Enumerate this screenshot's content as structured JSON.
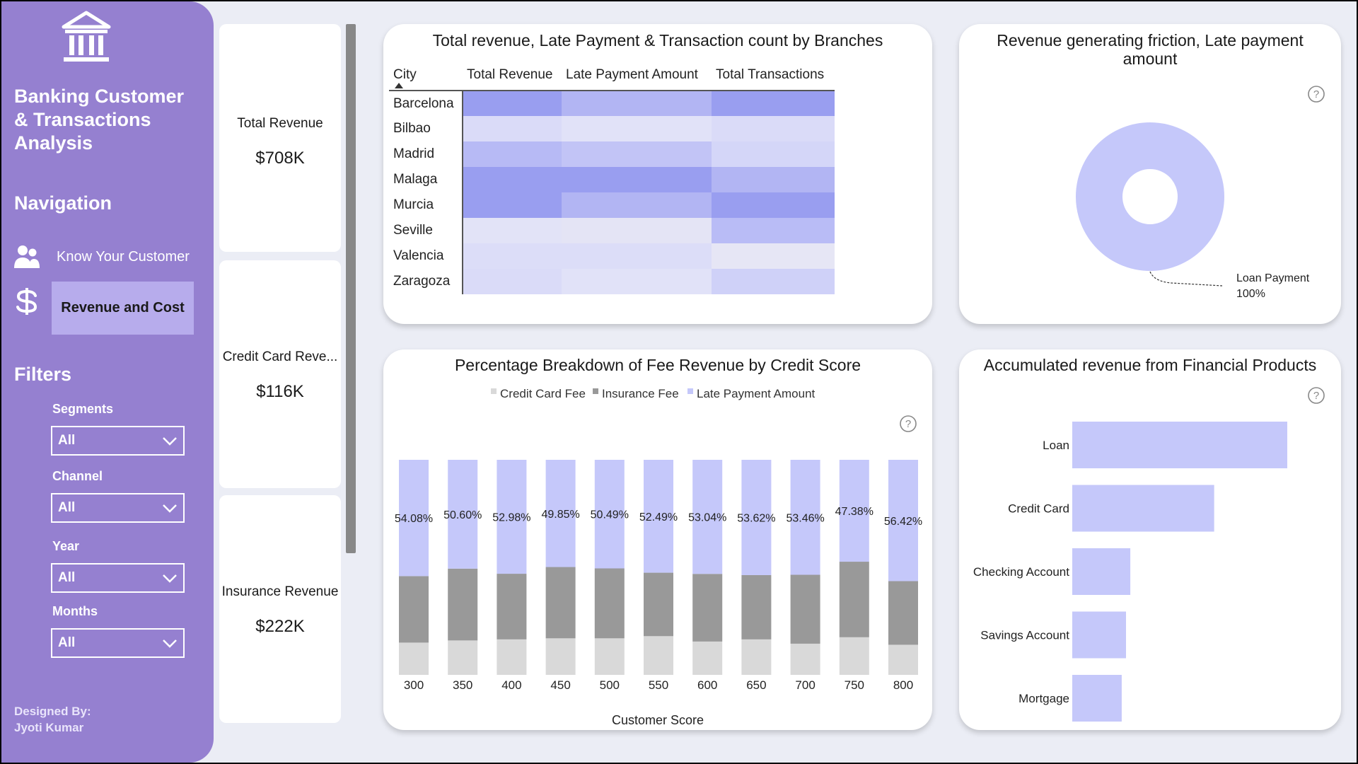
{
  "app": {
    "title": "Banking Customer & Transactions Analysis",
    "navigation_title": "Navigation",
    "nav_items": [
      {
        "label": "Know Your Customer",
        "icon": "customers-icon",
        "active": false
      },
      {
        "label": "Revenue and Cost",
        "icon": "dollar-icon",
        "active": true
      }
    ],
    "filters_title": "Filters",
    "filters": [
      {
        "label": "Segments",
        "value": "All"
      },
      {
        "label": "Channel",
        "value": "All"
      },
      {
        "label": "Year",
        "value": "All"
      },
      {
        "label": "Months",
        "value": "All"
      }
    ],
    "designed_by_label": "Designed By:",
    "designed_by_name": "Jyoti Kumar"
  },
  "kpis": [
    {
      "label": "Total Revenue",
      "value": "$708K"
    },
    {
      "label": "Credit Card Reve...",
      "value": "$116K"
    },
    {
      "label": "Insurance Revenue",
      "value": "$222K"
    }
  ],
  "colors": {
    "sidebar": "#9580d0",
    "active_nav": "#b7acec",
    "accent_light": "#c5c8fa",
    "dark_gray": "#999999",
    "light_gray": "#d9d9d9"
  },
  "matrix": {
    "title": "Total revenue, Late Payment & Transaction count by Branches",
    "columns": [
      "City",
      "Total Revenue",
      "Late Payment Amount",
      "Total Transactions"
    ],
    "rows": [
      {
        "city": "Barcelona",
        "shades": [
          "#999ef0",
          "#b2b5f3",
          "#999ef0"
        ]
      },
      {
        "city": "Bilbao",
        "shades": [
          "#dadbf8",
          "#e1e2f8",
          "#dadbf8"
        ]
      },
      {
        "city": "Madrid",
        "shades": [
          "#b7baf5",
          "#c2c4f6",
          "#d4d6f8"
        ]
      },
      {
        "city": "Malaga",
        "shades": [
          "#999ef0",
          "#999ef0",
          "#b2b5f3"
        ]
      },
      {
        "city": "Murcia",
        "shades": [
          "#999ef0",
          "#b2b5f3",
          "#999ef0"
        ]
      },
      {
        "city": "Seville",
        "shades": [
          "#e2e3f7",
          "#e4e4f5",
          "#b9bcf6"
        ]
      },
      {
        "city": "Valencia",
        "shades": [
          "#dcddf8",
          "#dcddf8",
          "#e6e6f5"
        ]
      },
      {
        "city": "Zaragoza",
        "shades": [
          "#dadbf8",
          "#e1e2f8",
          "#cfd1f8"
        ]
      }
    ]
  },
  "donut": {
    "title": "Revenue generating friction, Late payment amount",
    "label_name": "Loan Payment",
    "label_pct": "100%"
  },
  "chart_data": [
    {
      "type": "bar",
      "stacked": "percent",
      "title": "Percentage Breakdown of Fee Revenue by Credit Score",
      "xlabel": "Customer Score",
      "legend_position": "top",
      "categories": [
        "300",
        "350",
        "400",
        "450",
        "500",
        "550",
        "600",
        "650",
        "700",
        "750",
        "800"
      ],
      "series": [
        {
          "name": "Credit Card Fee",
          "color": "#d9d9d9",
          "values": [
            15.0,
            16.0,
            16.5,
            17.0,
            17.0,
            18.0,
            15.5,
            16.5,
            14.5,
            17.5,
            14.0
          ]
        },
        {
          "name": "Insurance Fee",
          "color": "#999999",
          "values": [
            30.92,
            33.4,
            30.52,
            33.15,
            32.51,
            29.51,
            31.46,
            29.88,
            32.04,
            35.12,
            29.58
          ]
        },
        {
          "name": "Late Payment Amount",
          "color": "#c5c8fa",
          "values": [
            54.08,
            50.6,
            52.98,
            49.85,
            50.49,
            52.49,
            53.04,
            53.62,
            53.46,
            47.38,
            56.42
          ]
        }
      ],
      "data_labels": [
        "54.08%",
        "50.60%",
        "52.98%",
        "49.85%",
        "50.49%",
        "52.49%",
        "53.04%",
        "53.62%",
        "53.46%",
        "47.38%",
        "56.42%"
      ]
    },
    {
      "type": "bar",
      "orientation": "horizontal",
      "title": "Accumulated revenue from Financial Products",
      "categories": [
        "Loan",
        "Credit Card",
        "Checking Account",
        "Savings Account",
        "Mortgage"
      ],
      "values": [
        100,
        66,
        27,
        25,
        23
      ],
      "color": "#c5c8fa"
    }
  ]
}
